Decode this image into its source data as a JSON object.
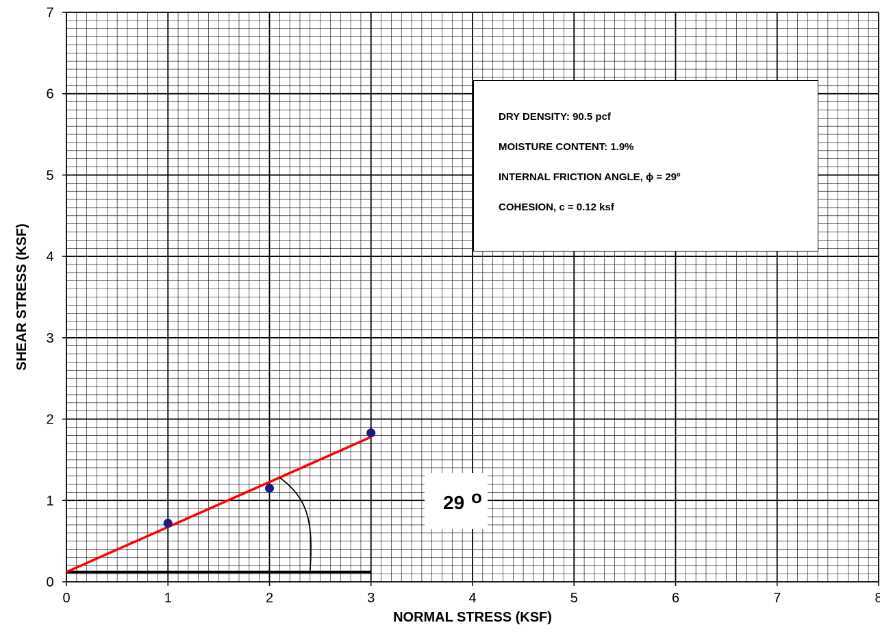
{
  "chart_data": {
    "type": "scatter",
    "xlabel": "NORMAL STRESS (KSF)",
    "ylabel": "SHEAR STRESS (KSF)",
    "xlim": [
      0,
      8
    ],
    "ylim": [
      0,
      7
    ],
    "x_ticks": [
      "0",
      "1",
      "2",
      "3",
      "4",
      "5",
      "6",
      "7",
      "8"
    ],
    "y_ticks": [
      "0",
      "1",
      "2",
      "3",
      "4",
      "5",
      "6",
      "7"
    ],
    "grid": true,
    "minor_grid_divisions": 10,
    "series": [
      {
        "x": [
          1,
          2,
          3
        ],
        "y": [
          0.72,
          1.15,
          1.83
        ],
        "color": "#1a1a80"
      }
    ],
    "fit_line": {
      "x": [
        0,
        3
      ],
      "y": [
        0.12,
        1.78
      ],
      "color": "#ff0000"
    },
    "baseline": {
      "x": [
        0,
        3
      ],
      "y": [
        0.12,
        0.12
      ],
      "color": "#000000"
    },
    "angle_label": {
      "value": "29",
      "unit": "o"
    },
    "info_box": {
      "lines": [
        "DRY DENSITY:  90.5 pcf",
        "MOISTURE CONTENT: 1.9%",
        "INTERNAL FRICTION ANGLE, ϕ = 29º",
        "COHESION, c =  0.12 ksf"
      ]
    }
  }
}
